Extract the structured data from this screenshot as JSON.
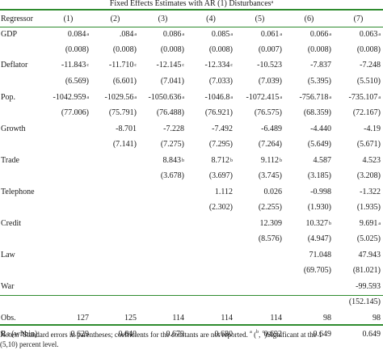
{
  "table": {
    "caption": {
      "text": "Fixed Effects Estimates with AR (1) Disturbances",
      "mark": "a"
    },
    "header": [
      "Regressor",
      "(1)",
      "(2)",
      "(3)",
      "(4)",
      "(5)",
      "(6)",
      "(7)"
    ],
    "rows": [
      {
        "label": "GDP",
        "cells": [
          {
            "v": "0.084",
            "s": "a"
          },
          {
            "v": ".084",
            "s": "a"
          },
          {
            "v": "0.086",
            "s": "a"
          },
          {
            "v": "0.085",
            "s": "a"
          },
          {
            "v": "0.061",
            "s": "a"
          },
          {
            "v": "0.066",
            "s": "a"
          },
          {
            "v": "0.063",
            "s": "a"
          }
        ]
      },
      {
        "label": "",
        "cells": [
          {
            "v": "(0.008)"
          },
          {
            "v": "(0.008)"
          },
          {
            "v": "(0.008)"
          },
          {
            "v": "(0.008)"
          },
          {
            "v": "(0.007)"
          },
          {
            "v": "(0.008)"
          },
          {
            "v": "(0.008)"
          }
        ]
      },
      {
        "label": "Deflator",
        "cells": [
          {
            "v": "-11.843",
            "s": "c"
          },
          {
            "v": "-11.710",
            "s": "c"
          },
          {
            "v": "-12.145",
            "c2": "c"
          },
          {
            "v": "-12.334",
            "s": "c"
          },
          {
            "v": "-10.523"
          },
          {
            "v": "-7.837"
          },
          {
            "v": "-7.248"
          }
        ]
      },
      {
        "label": "",
        "cells": [
          {
            "v": "(6.569)"
          },
          {
            "v": "(6.601)"
          },
          {
            "v": "(7.041)"
          },
          {
            "v": "(7.033)"
          },
          {
            "v": "(7.039)"
          },
          {
            "v": "(5.395)"
          },
          {
            "v": "(5.510)"
          }
        ]
      },
      {
        "label": "Pop.",
        "cells": [
          {
            "v": "-1042.959",
            "s": "a"
          },
          {
            "v": "-1029.56",
            "s": "a"
          },
          {
            "v": "-1050.636",
            "s": "a"
          },
          {
            "v": "-1046.8",
            "s": "a"
          },
          {
            "v": "-1072.415",
            "s": "a"
          },
          {
            "v": "-756.718",
            "s": "a"
          },
          {
            "v": "-735.107",
            "s": "a"
          }
        ]
      },
      {
        "label": "",
        "cells": [
          {
            "v": "(77.006)"
          },
          {
            "v": "(75.791)"
          },
          {
            "v": "(76.488)"
          },
          {
            "v": "(76.921)"
          },
          {
            "v": "(76.575)"
          },
          {
            "v": "(68.359)"
          },
          {
            "v": "(72.167)"
          }
        ]
      },
      {
        "label": "Growth",
        "cells": [
          {
            "v": ""
          },
          {
            "v": "-8.701"
          },
          {
            "v": "-7.228"
          },
          {
            "v": "-7.492"
          },
          {
            "v": "-6.489"
          },
          {
            "v": "-4.440"
          },
          {
            "v": "-4.19"
          }
        ]
      },
      {
        "label": "",
        "cells": [
          {
            "v": ""
          },
          {
            "v": "(7.141)"
          },
          {
            "v": "(7.275)"
          },
          {
            "v": "(7.295)"
          },
          {
            "v": "(7.264)"
          },
          {
            "v": "(5.649)"
          },
          {
            "v": "(5.671)"
          }
        ]
      },
      {
        "label": "Trade",
        "cells": [
          {
            "v": ""
          },
          {
            "v": ""
          },
          {
            "v": "8.843",
            "s": "b"
          },
          {
            "v": "8.712",
            "s": "b"
          },
          {
            "v": "9.112",
            "s": "b"
          },
          {
            "v": "4.587"
          },
          {
            "v": "4.523"
          }
        ]
      },
      {
        "label": "",
        "cells": [
          {
            "v": ""
          },
          {
            "v": ""
          },
          {
            "v": "(3.678)"
          },
          {
            "v": "(3.697)"
          },
          {
            "v": "(3.745)"
          },
          {
            "v": "(3.185)"
          },
          {
            "v": "(3.208)"
          }
        ]
      },
      {
        "label": "Telephone",
        "cells": [
          {
            "v": ""
          },
          {
            "v": ""
          },
          {
            "v": ""
          },
          {
            "v": "1.112"
          },
          {
            "v": "0.026"
          },
          {
            "v": "-0.998"
          },
          {
            "v": "-1.322"
          }
        ]
      },
      {
        "label": "",
        "cells": [
          {
            "v": ""
          },
          {
            "v": ""
          },
          {
            "v": ""
          },
          {
            "v": "(2.302)"
          },
          {
            "v": "(2.255)"
          },
          {
            "v": "(1.930)"
          },
          {
            "v": "(1.935)"
          }
        ]
      },
      {
        "label": "Credit",
        "cells": [
          {
            "v": ""
          },
          {
            "v": ""
          },
          {
            "v": ""
          },
          {
            "v": ""
          },
          {
            "v": "12.309"
          },
          {
            "v": "10.327",
            "s": "b"
          },
          {
            "v": "9.691",
            "s": "a"
          }
        ]
      },
      {
        "label": "",
        "cells": [
          {
            "v": ""
          },
          {
            "v": ""
          },
          {
            "v": ""
          },
          {
            "v": ""
          },
          {
            "v": "(8.576)"
          },
          {
            "v": "(4.947)"
          },
          {
            "v": "(5.025)"
          }
        ]
      },
      {
        "label": "Law",
        "cells": [
          {
            "v": ""
          },
          {
            "v": ""
          },
          {
            "v": ""
          },
          {
            "v": ""
          },
          {
            "v": ""
          },
          {
            "v": "71.048"
          },
          {
            "v": "47.943"
          }
        ]
      },
      {
        "label": "",
        "cells": [
          {
            "v": ""
          },
          {
            "v": ""
          },
          {
            "v": ""
          },
          {
            "v": ""
          },
          {
            "v": ""
          },
          {
            "v": "(69.705)"
          },
          {
            "v": "(81.021)"
          }
        ]
      },
      {
        "label": "War",
        "cells": [
          {
            "v": ""
          },
          {
            "v": ""
          },
          {
            "v": ""
          },
          {
            "v": ""
          },
          {
            "v": ""
          },
          {
            "v": ""
          },
          {
            "v": "-99.593"
          }
        ]
      },
      {
        "label": "",
        "cells": [
          {
            "v": ""
          },
          {
            "v": ""
          },
          {
            "v": ""
          },
          {
            "v": ""
          },
          {
            "v": ""
          },
          {
            "v": ""
          },
          {
            "v": "(152.145)"
          }
        ]
      },
      {
        "label": "Obs.",
        "cells": [
          {
            "v": "127"
          },
          {
            "v": "125"
          },
          {
            "v": "114"
          },
          {
            "v": "114"
          },
          {
            "v": "114"
          },
          {
            "v": "98"
          },
          {
            "v": "98"
          }
        ]
      },
      {
        "label": "R",
        "labelSup": "2",
        "labelTail": " (within)",
        "cells": [
          {
            "v": "0.629"
          },
          {
            "v": "0.640"
          },
          {
            "v": "0.679"
          },
          {
            "v": "0.680"
          },
          {
            "v": "0.692"
          },
          {
            "v": "0.649"
          },
          {
            "v": "0.649"
          }
        ]
      }
    ],
    "notes": {
      "line1_prefix": "Notes: ",
      "line1_mark": "a",
      "line1_text": "Standard errors in parentheses; coefficients for the constants are not reported. ",
      "sig_a": "a",
      "sig_sep1": " (",
      "sig_b": "b",
      "sig_sep2": ", ",
      "sig_c": "c",
      "sig_tail": ")Significant at the 1",
      "line2": "(5,10) percent level."
    }
  }
}
